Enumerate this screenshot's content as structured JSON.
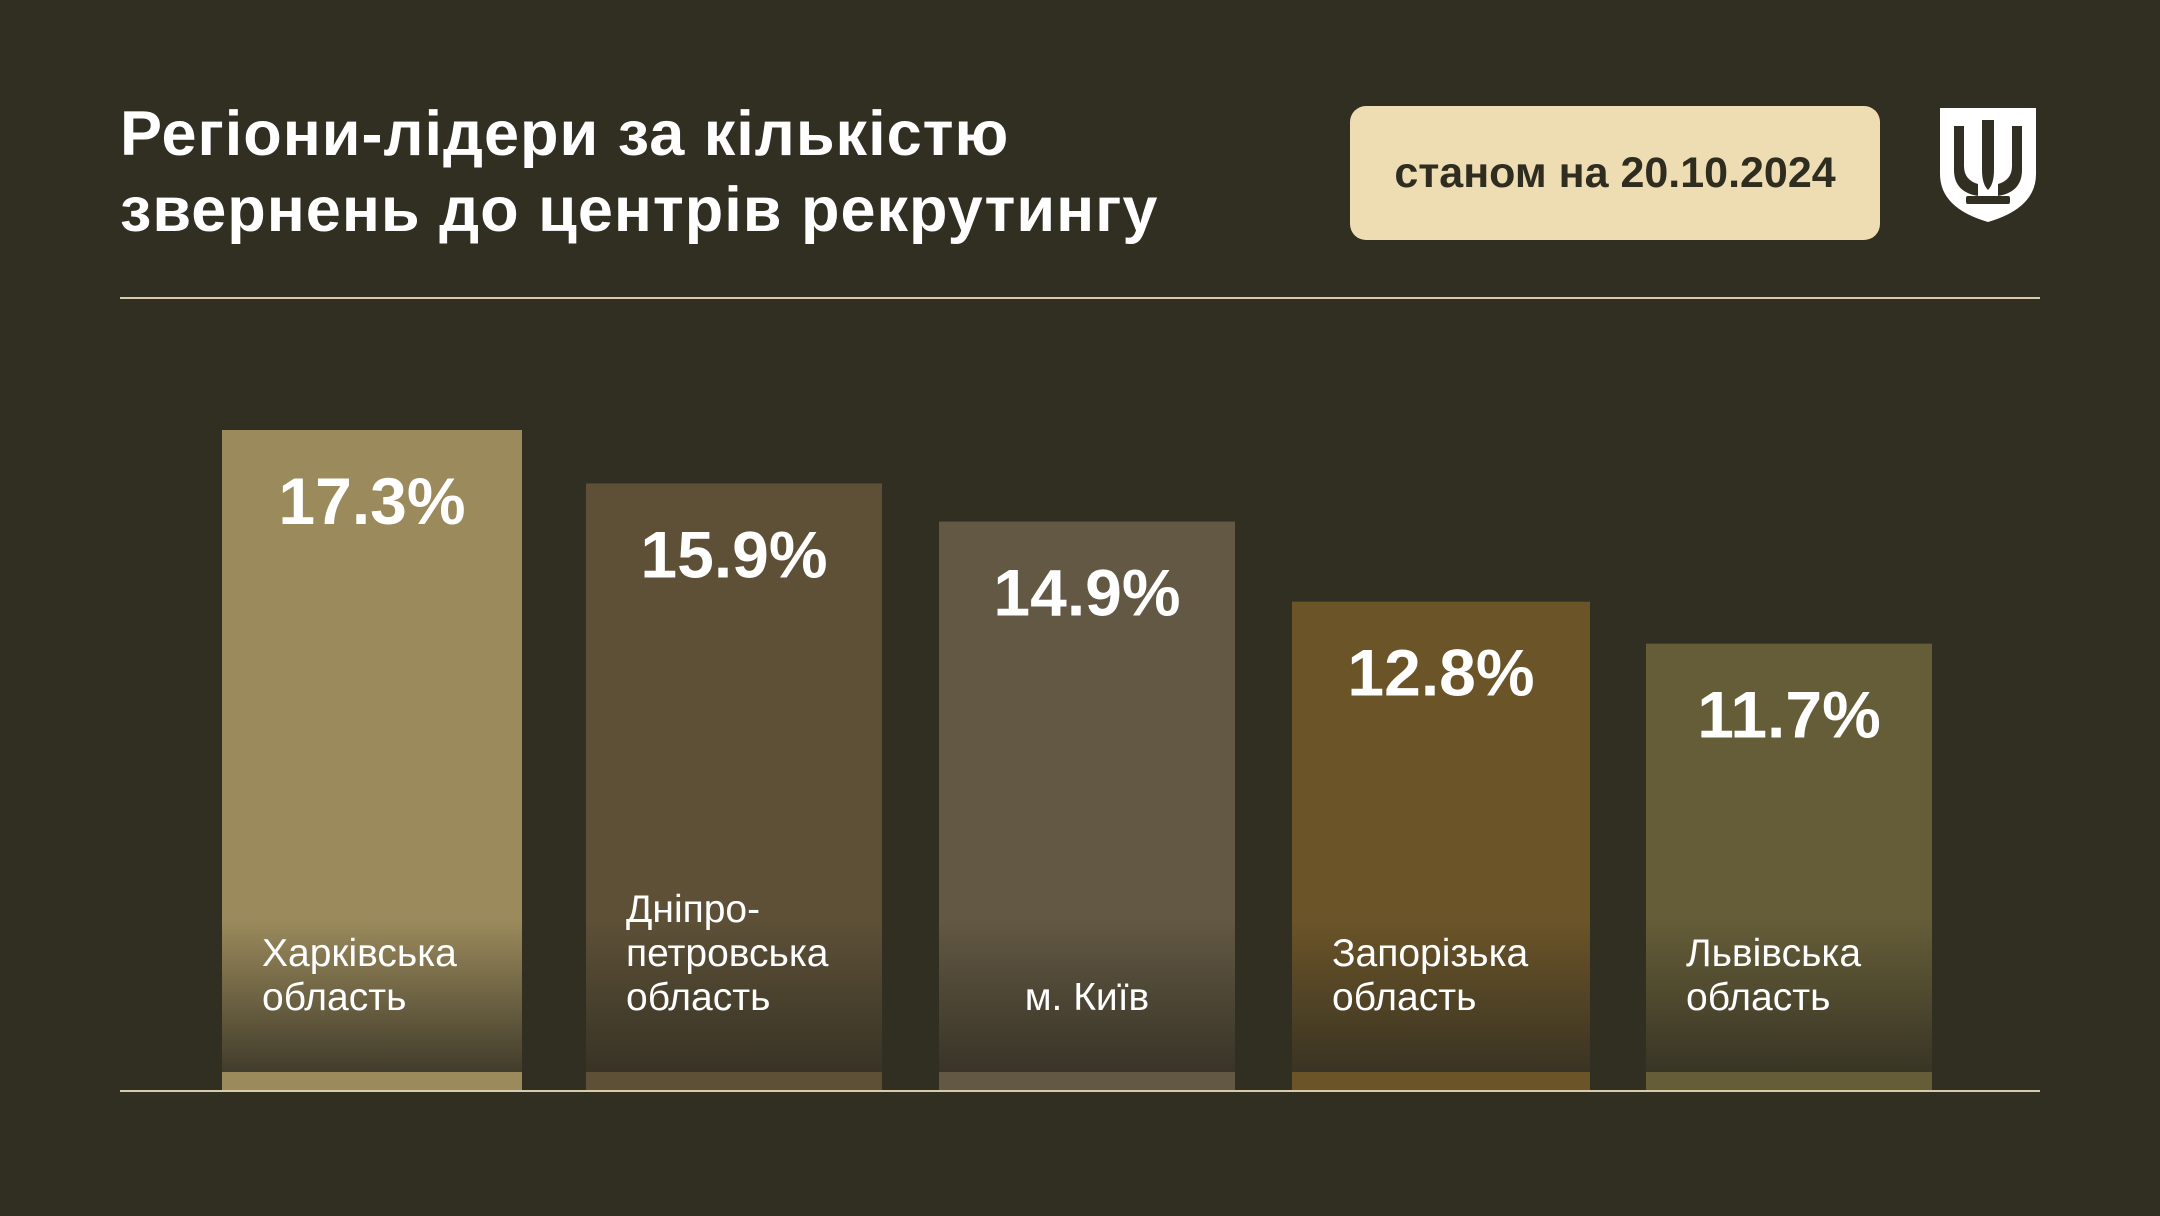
{
  "header": {
    "title_line1": "Регіони-лідери за кількістю",
    "title_line2": "звернень до центрів рекрутингу",
    "date_label": "станом на 20.10.2024"
  },
  "emblem": {
    "icon": "trident-shield-icon",
    "color": "#ffffff"
  },
  "colors": {
    "background": "#312e22",
    "rule": "#d7cba9",
    "badge": "#eedcb2"
  },
  "chart_data": {
    "type": "bar",
    "unit": "%",
    "ylim": [
      0,
      17.3
    ],
    "grid": false,
    "categories": [
      [
        "Харківська",
        "область"
      ],
      [
        "Дніпро-",
        "петровська",
        "область"
      ],
      [
        "м. Київ"
      ],
      [
        "Запорізька",
        "область"
      ],
      [
        "Львівська",
        "область"
      ]
    ],
    "values": [
      17.3,
      15.9,
      14.9,
      12.8,
      11.7
    ],
    "value_labels": [
      "17.3%",
      "15.9%",
      "14.9%",
      "12.8%",
      "11.7%"
    ],
    "label_align": [
      "left",
      "left",
      "center",
      "left",
      "left"
    ],
    "bar_colors": [
      "#9b8a5c",
      "#5d5037",
      "#625843",
      "#6b5428",
      "#655d38"
    ]
  }
}
